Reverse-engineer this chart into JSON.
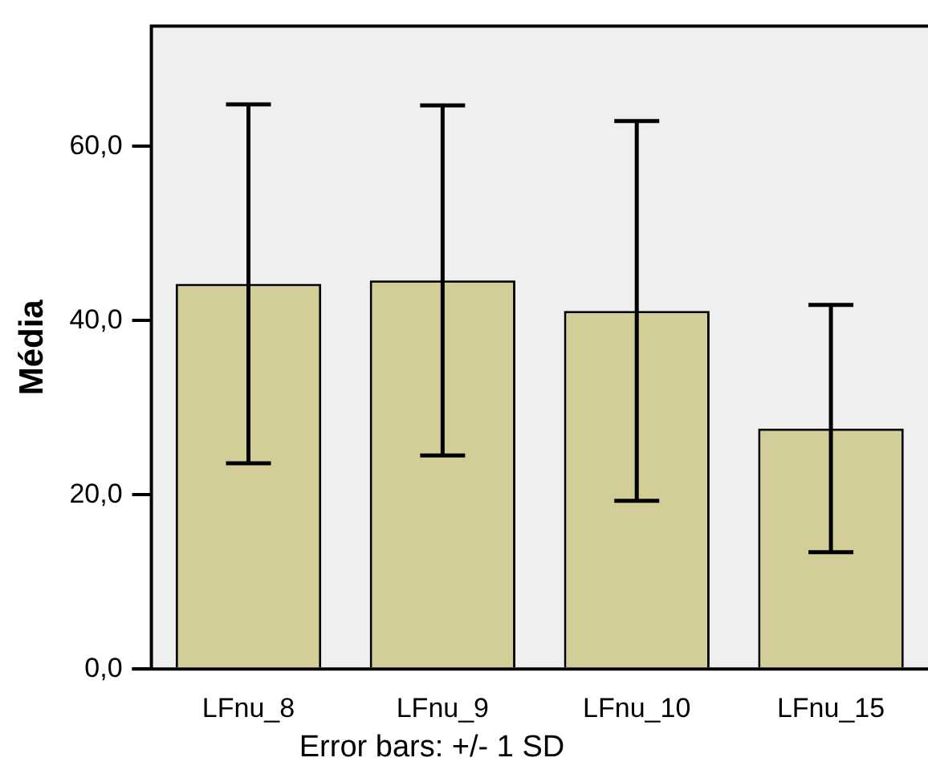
{
  "chart_data": {
    "type": "bar",
    "ylabel": "Média",
    "categories": [
      "LFnu_8",
      "LFnu_9",
      "LFnu_10",
      "LFnu_15"
    ],
    "values": [
      44.2,
      44.6,
      41.1,
      27.6
    ],
    "errors": [
      20.6,
      20.1,
      21.8,
      14.2
    ],
    "color": "#d3ce98",
    "ylim": [
      0,
      73.8
    ],
    "yticks": [
      {
        "value": 0,
        "label": "0,0"
      },
      {
        "value": 20,
        "label": "20,0"
      },
      {
        "value": 40,
        "label": "40,0"
      },
      {
        "value": 60,
        "label": "60,0"
      }
    ],
    "grid": false,
    "legend": false,
    "annotations": [
      "Error bars: +/- 1 SD"
    ]
  }
}
